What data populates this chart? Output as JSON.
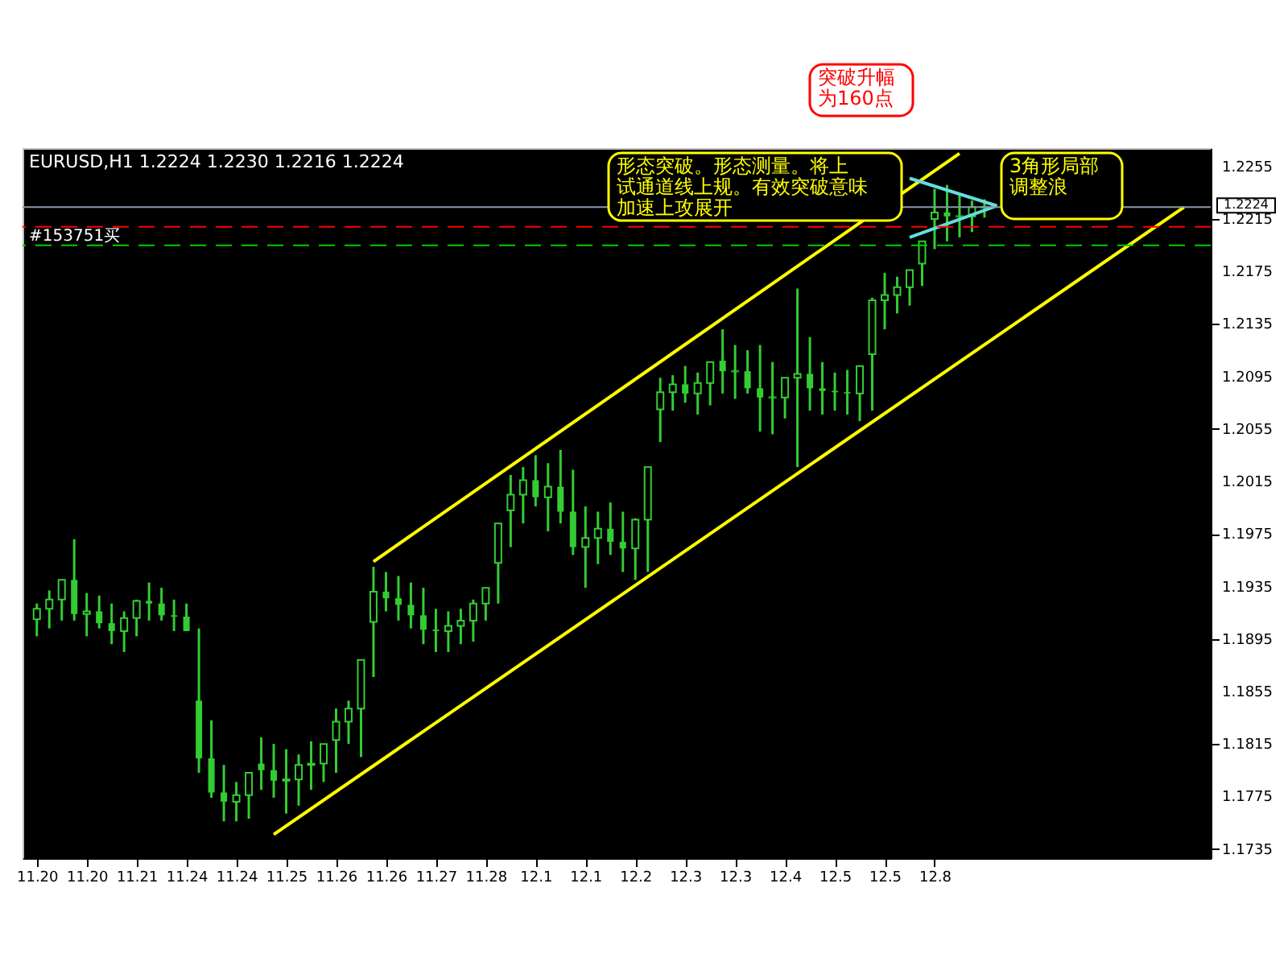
{
  "chart_data": {
    "type": "candlestick",
    "title": "EURUSD,H1  1.2224 1.2230 1.2216 1.2224",
    "color": "#33cc33",
    "categories": [
      "11.20",
      null,
      null,
      null,
      "11.20",
      null,
      null,
      null,
      "11.21",
      null,
      null,
      null,
      "11.24",
      null,
      null,
      null,
      "11.24",
      null,
      null,
      null,
      "11.25",
      null,
      null,
      null,
      "11.26",
      null,
      null,
      null,
      "11.26",
      null,
      null,
      null,
      "11.27",
      null,
      null,
      null,
      "11.28",
      null,
      null,
      null,
      "12.1",
      null,
      null,
      null,
      "12.1",
      null,
      null,
      null,
      "12.2",
      null,
      null,
      null,
      "12.3",
      null,
      null,
      null,
      "12.3",
      null,
      null,
      null,
      "12.4",
      null,
      null,
      null,
      "12.5",
      null,
      null,
      null,
      "12.5",
      null,
      null,
      null,
      "12.8",
      null,
      null,
      null,
      null,
      null,
      null,
      null,
      null,
      null,
      null,
      null,
      null,
      null,
      null,
      null,
      null,
      null,
      null,
      null,
      null,
      null
    ],
    "ohlc": [
      [
        1.191,
        1.1922,
        1.1897,
        1.1918
      ],
      [
        1.1918,
        1.1932,
        1.1903,
        1.1925
      ],
      [
        1.1925,
        1.194,
        1.1909,
        1.194
      ],
      [
        1.194,
        1.1971,
        1.1909,
        1.1914
      ],
      [
        1.1914,
        1.193,
        1.1897,
        1.1916
      ],
      [
        1.1916,
        1.1928,
        1.1903,
        1.1907
      ],
      [
        1.1907,
        1.1922,
        1.1891,
        1.1901
      ],
      [
        1.1901,
        1.1916,
        1.1885,
        1.1911
      ],
      [
        1.1911,
        1.1925,
        1.1897,
        1.1924
      ],
      [
        1.1924,
        1.1938,
        1.1909,
        1.1922
      ],
      [
        1.1922,
        1.1934,
        1.1909,
        1.1913
      ],
      [
        1.1913,
        1.1925,
        1.1901,
        1.1912
      ],
      [
        1.1912,
        1.1922,
        1.1901,
        1.1901
      ],
      [
        1.1848,
        1.1903,
        1.1793,
        1.1804
      ],
      [
        1.1804,
        1.1833,
        1.1774,
        1.1778
      ],
      [
        1.1778,
        1.1799,
        1.1756,
        1.1771
      ],
      [
        1.1771,
        1.1786,
        1.1756,
        1.1776
      ],
      [
        1.1776,
        1.1793,
        1.1758,
        1.1793
      ],
      [
        1.18,
        1.182,
        1.178,
        1.1795
      ],
      [
        1.1795,
        1.1815,
        1.1774,
        1.1787
      ],
      [
        1.1787,
        1.1811,
        1.1762,
        1.1788
      ],
      [
        1.1788,
        1.1807,
        1.1768,
        1.1799
      ],
      [
        1.1799,
        1.1817,
        1.178,
        1.18
      ],
      [
        1.18,
        1.1815,
        1.1786,
        1.1815
      ],
      [
        1.1818,
        1.1842,
        1.1793,
        1.1832
      ],
      [
        1.1832,
        1.1848,
        1.1815,
        1.1842
      ],
      [
        1.1842,
        1.1879,
        1.1805,
        1.1879
      ],
      [
        1.1908,
        1.195,
        1.1866,
        1.1931
      ],
      [
        1.1931,
        1.1946,
        1.1916,
        1.1926
      ],
      [
        1.1926,
        1.1943,
        1.1909,
        1.1921
      ],
      [
        1.1921,
        1.1938,
        1.1903,
        1.1913
      ],
      [
        1.1913,
        1.1934,
        1.1891,
        1.1902
      ],
      [
        1.1902,
        1.1918,
        1.1885,
        1.1901
      ],
      [
        1.1901,
        1.1916,
        1.1885,
        1.1905
      ],
      [
        1.1905,
        1.1918,
        1.1891,
        1.1909
      ],
      [
        1.1909,
        1.1925,
        1.1893,
        1.1922
      ],
      [
        1.1922,
        1.1934,
        1.1909,
        1.1934
      ],
      [
        1.1953,
        1.1983,
        1.1922,
        1.1983
      ],
      [
        1.1993,
        1.202,
        1.1965,
        1.2005
      ],
      [
        1.2005,
        1.2026,
        1.1983,
        1.2016
      ],
      [
        1.2016,
        1.2035,
        1.1996,
        1.2003
      ],
      [
        1.2003,
        1.2029,
        1.1977,
        1.2011
      ],
      [
        1.2011,
        1.2039,
        1.1983,
        1.1992
      ],
      [
        1.1992,
        1.2024,
        1.1959,
        1.1965
      ],
      [
        1.1965,
        1.1996,
        1.1934,
        1.1972
      ],
      [
        1.1972,
        1.1992,
        1.1952,
        1.1979
      ],
      [
        1.1979,
        1.1999,
        1.1959,
        1.1969
      ],
      [
        1.1969,
        1.1992,
        1.1946,
        1.1964
      ],
      [
        1.1964,
        1.1987,
        1.194,
        1.1986
      ],
      [
        1.1986,
        1.2026,
        1.1946,
        1.2026
      ],
      [
        1.207,
        1.2094,
        1.2045,
        1.2083
      ],
      [
        1.2083,
        1.2096,
        1.2069,
        1.2089
      ],
      [
        1.2089,
        1.2103,
        1.2075,
        1.2082
      ],
      [
        1.2082,
        1.2098,
        1.2066,
        1.209
      ],
      [
        1.209,
        1.2106,
        1.2073,
        1.2106
      ],
      [
        1.2107,
        1.2131,
        1.2082,
        1.2099
      ],
      [
        1.2099,
        1.2119,
        1.2078,
        1.2099
      ],
      [
        1.2099,
        1.2115,
        1.2082,
        1.2086
      ],
      [
        1.2086,
        1.2119,
        1.2053,
        1.2079
      ],
      [
        1.2079,
        1.2106,
        1.2051,
        1.2079
      ],
      [
        1.2079,
        1.2094,
        1.2063,
        1.2094
      ],
      [
        1.2094,
        1.2162,
        1.2026,
        1.2097
      ],
      [
        1.2097,
        1.2125,
        1.2069,
        1.2086
      ],
      [
        1.2086,
        1.2106,
        1.2066,
        1.2084
      ],
      [
        1.2084,
        1.2098,
        1.2069,
        1.2083
      ],
      [
        1.2083,
        1.21,
        1.2066,
        1.2082
      ],
      [
        1.2082,
        1.2103,
        1.2061,
        1.2103
      ],
      [
        1.2112,
        1.2155,
        1.2069,
        1.2153
      ],
      [
        1.2153,
        1.2174,
        1.2131,
        1.2157
      ],
      [
        1.2157,
        1.2171,
        1.2143,
        1.2163
      ],
      [
        1.2163,
        1.2176,
        1.2149,
        1.2176
      ],
      [
        1.2181,
        1.2198,
        1.2164,
        1.2198
      ],
      [
        1.2215,
        1.2238,
        1.2192,
        1.222
      ],
      [
        1.222,
        1.2241,
        1.2198,
        1.2217
      ],
      [
        1.2217,
        1.2233,
        1.2201,
        1.2217
      ],
      [
        1.2217,
        1.2229,
        1.2205,
        1.2224
      ],
      [
        1.2224,
        1.223,
        1.2216,
        1.2224
      ],
      null,
      null,
      null,
      null,
      null,
      null,
      null,
      null,
      null,
      null,
      null,
      null,
      null,
      null,
      null,
      null,
      null
    ],
    "series": [
      {
        "type": "line",
        "color": "#ffff00",
        "values": [
          null,
          null,
          null,
          null,
          null,
          null,
          null,
          null,
          null,
          null,
          null,
          null,
          null,
          null,
          null,
          null,
          null,
          null,
          null,
          1.1746,
          null,
          null,
          null,
          null,
          null,
          null,
          null,
          null,
          null,
          null,
          null,
          null,
          null,
          null,
          null,
          null,
          null,
          null,
          null,
          null,
          null,
          null,
          null,
          null,
          null,
          null,
          null,
          null,
          null,
          null,
          null,
          null,
          null,
          null,
          null,
          null,
          null,
          null,
          null,
          null,
          null,
          null,
          null,
          null,
          null,
          null,
          null,
          null,
          null,
          null,
          null,
          null,
          null,
          null,
          null,
          null,
          null,
          null,
          null,
          null,
          null,
          null,
          null,
          null,
          null,
          null,
          null,
          null,
          null,
          null,
          null,
          null,
          1.2224,
          null
        ]
      },
      {
        "type": "line",
        "color": "#ffff00",
        "values": [
          null,
          null,
          null,
          null,
          null,
          null,
          null,
          null,
          null,
          null,
          null,
          null,
          null,
          null,
          null,
          null,
          null,
          null,
          null,
          null,
          null,
          null,
          null,
          null,
          null,
          null,
          null,
          1.1954,
          null,
          null,
          null,
          null,
          null,
          null,
          null,
          null,
          null,
          null,
          null,
          null,
          null,
          null,
          null,
          null,
          null,
          null,
          null,
          null,
          null,
          null,
          null,
          null,
          null,
          null,
          null,
          null,
          null,
          null,
          null,
          null,
          null,
          null,
          null,
          null,
          null,
          null,
          null,
          null,
          null,
          null,
          null,
          null,
          null,
          null,
          1.2265,
          null,
          null,
          null,
          null,
          null,
          null,
          null,
          null,
          null,
          null,
          null,
          null,
          null,
          null,
          null,
          null,
          null,
          null,
          null
        ]
      },
      {
        "type": "line",
        "color": "#66dddd",
        "values": [
          null,
          null,
          null,
          null,
          null,
          null,
          null,
          null,
          null,
          null,
          null,
          null,
          null,
          null,
          null,
          null,
          null,
          null,
          null,
          null,
          null,
          null,
          null,
          null,
          null,
          null,
          null,
          null,
          null,
          null,
          null,
          null,
          null,
          null,
          null,
          null,
          null,
          null,
          null,
          null,
          null,
          null,
          null,
          null,
          null,
          null,
          null,
          null,
          null,
          null,
          null,
          null,
          null,
          null,
          null,
          null,
          null,
          null,
          null,
          null,
          null,
          null,
          null,
          null,
          null,
          null,
          null,
          null,
          null,
          null,
          1.2246,
          null,
          null,
          null,
          null,
          null,
          null,
          1.2225,
          null,
          null,
          null,
          null,
          null,
          null,
          null,
          null,
          null,
          null,
          null,
          null,
          null,
          null,
          null,
          null
        ]
      },
      {
        "type": "line",
        "color": "#66dddd",
        "values": [
          null,
          null,
          null,
          null,
          null,
          null,
          null,
          null,
          null,
          null,
          null,
          null,
          null,
          null,
          null,
          null,
          null,
          null,
          null,
          null,
          null,
          null,
          null,
          null,
          null,
          null,
          null,
          null,
          null,
          null,
          null,
          null,
          null,
          null,
          null,
          null,
          null,
          null,
          null,
          null,
          null,
          null,
          null,
          null,
          null,
          null,
          null,
          null,
          null,
          null,
          null,
          null,
          null,
          null,
          null,
          null,
          null,
          null,
          null,
          null,
          null,
          null,
          null,
          null,
          null,
          null,
          null,
          null,
          null,
          null,
          1.2201,
          null,
          null,
          null,
          null,
          null,
          null,
          1.2225,
          null,
          null,
          null,
          null,
          null,
          null,
          null,
          null,
          null,
          null,
          null,
          null,
          null,
          null,
          null,
          null
        ]
      }
    ],
    "ylim": [
      1.1728,
      1.2269
    ],
    "yticks": [
      1.1735,
      1.1775,
      1.1815,
      1.1855,
      1.1895,
      1.1935,
      1.1975,
      1.2015,
      1.2055,
      1.2095,
      1.2135,
      1.2175,
      1.2215,
      1.2255
    ],
    "ref_lines": [
      {
        "axis": "y",
        "value": 1.2224,
        "label": "1.2224",
        "color": "#8899aa",
        "line_style": "solid"
      },
      {
        "axis": "y",
        "value": 1.2209,
        "color": "#ff0000",
        "line_style": "dashed"
      },
      {
        "axis": "y",
        "value": 1.2195,
        "label": "#153751买",
        "color": "#00cc00",
        "line_style": "dashed"
      }
    ],
    "annotations": [
      "突破升幅为160点",
      "形态突破。形态测量。将上试通道线上规。有效突破意味加速上攻展开",
      "3角形局部调整浪"
    ],
    "grid": false
  }
}
